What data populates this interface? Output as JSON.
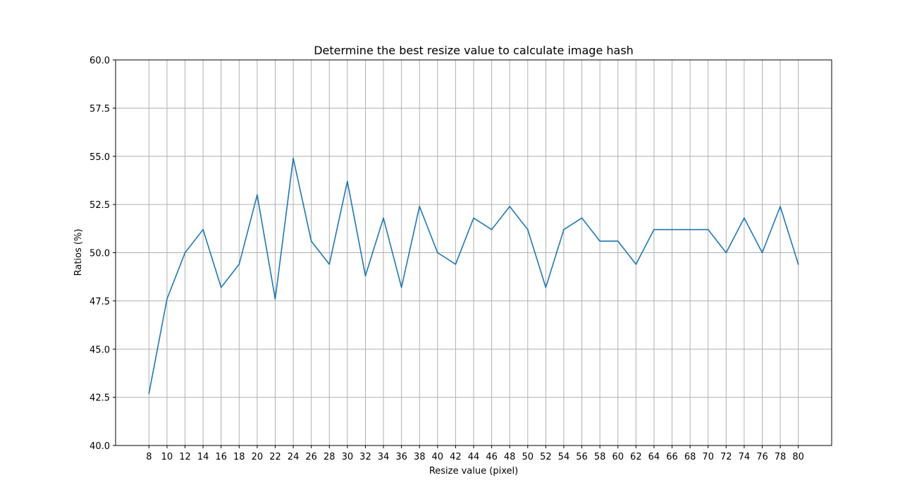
{
  "chart_data": {
    "type": "line",
    "title": "Determine the best resize value to calculate image hash",
    "xlabel": "Resize value (pixel)",
    "ylabel": "Ratios (%)",
    "x": [
      8,
      10,
      12,
      14,
      16,
      18,
      20,
      22,
      24,
      26,
      28,
      30,
      32,
      34,
      36,
      38,
      40,
      42,
      44,
      46,
      48,
      50,
      52,
      54,
      56,
      58,
      60,
      62,
      64,
      66,
      68,
      70,
      72,
      74,
      76,
      78,
      80
    ],
    "series": [
      {
        "values": [
          42.7,
          47.6,
          50.0,
          51.2,
          48.2,
          49.4,
          53.0,
          47.6,
          54.9,
          50.6,
          49.4,
          53.7,
          48.8,
          51.8,
          48.2,
          52.4,
          50.0,
          49.4,
          51.8,
          51.2,
          52.4,
          51.2,
          48.2,
          51.2,
          51.8,
          50.6,
          50.6,
          49.4,
          51.2,
          51.2,
          51.2,
          51.2,
          50.0,
          51.8,
          50.0,
          52.4,
          49.4
        ],
        "color": "#1f77b4"
      }
    ],
    "xlim": [
      4.3,
      83.7
    ],
    "ylim": [
      40.0,
      60.0
    ],
    "x_ticks": [
      "8",
      "10",
      "12",
      "14",
      "16",
      "18",
      "20",
      "22",
      "24",
      "26",
      "28",
      "30",
      "32",
      "34",
      "36",
      "38",
      "40",
      "42",
      "44",
      "46",
      "48",
      "50",
      "52",
      "54",
      "56",
      "58",
      "60",
      "62",
      "64",
      "66",
      "68",
      "70",
      "72",
      "74",
      "76",
      "78",
      "80"
    ],
    "y_ticks": [
      "40.0",
      "42.5",
      "45.0",
      "47.5",
      "50.0",
      "52.5",
      "55.0",
      "57.5",
      "60.0"
    ],
    "grid": true,
    "grid_color": "#b0b0b0"
  }
}
